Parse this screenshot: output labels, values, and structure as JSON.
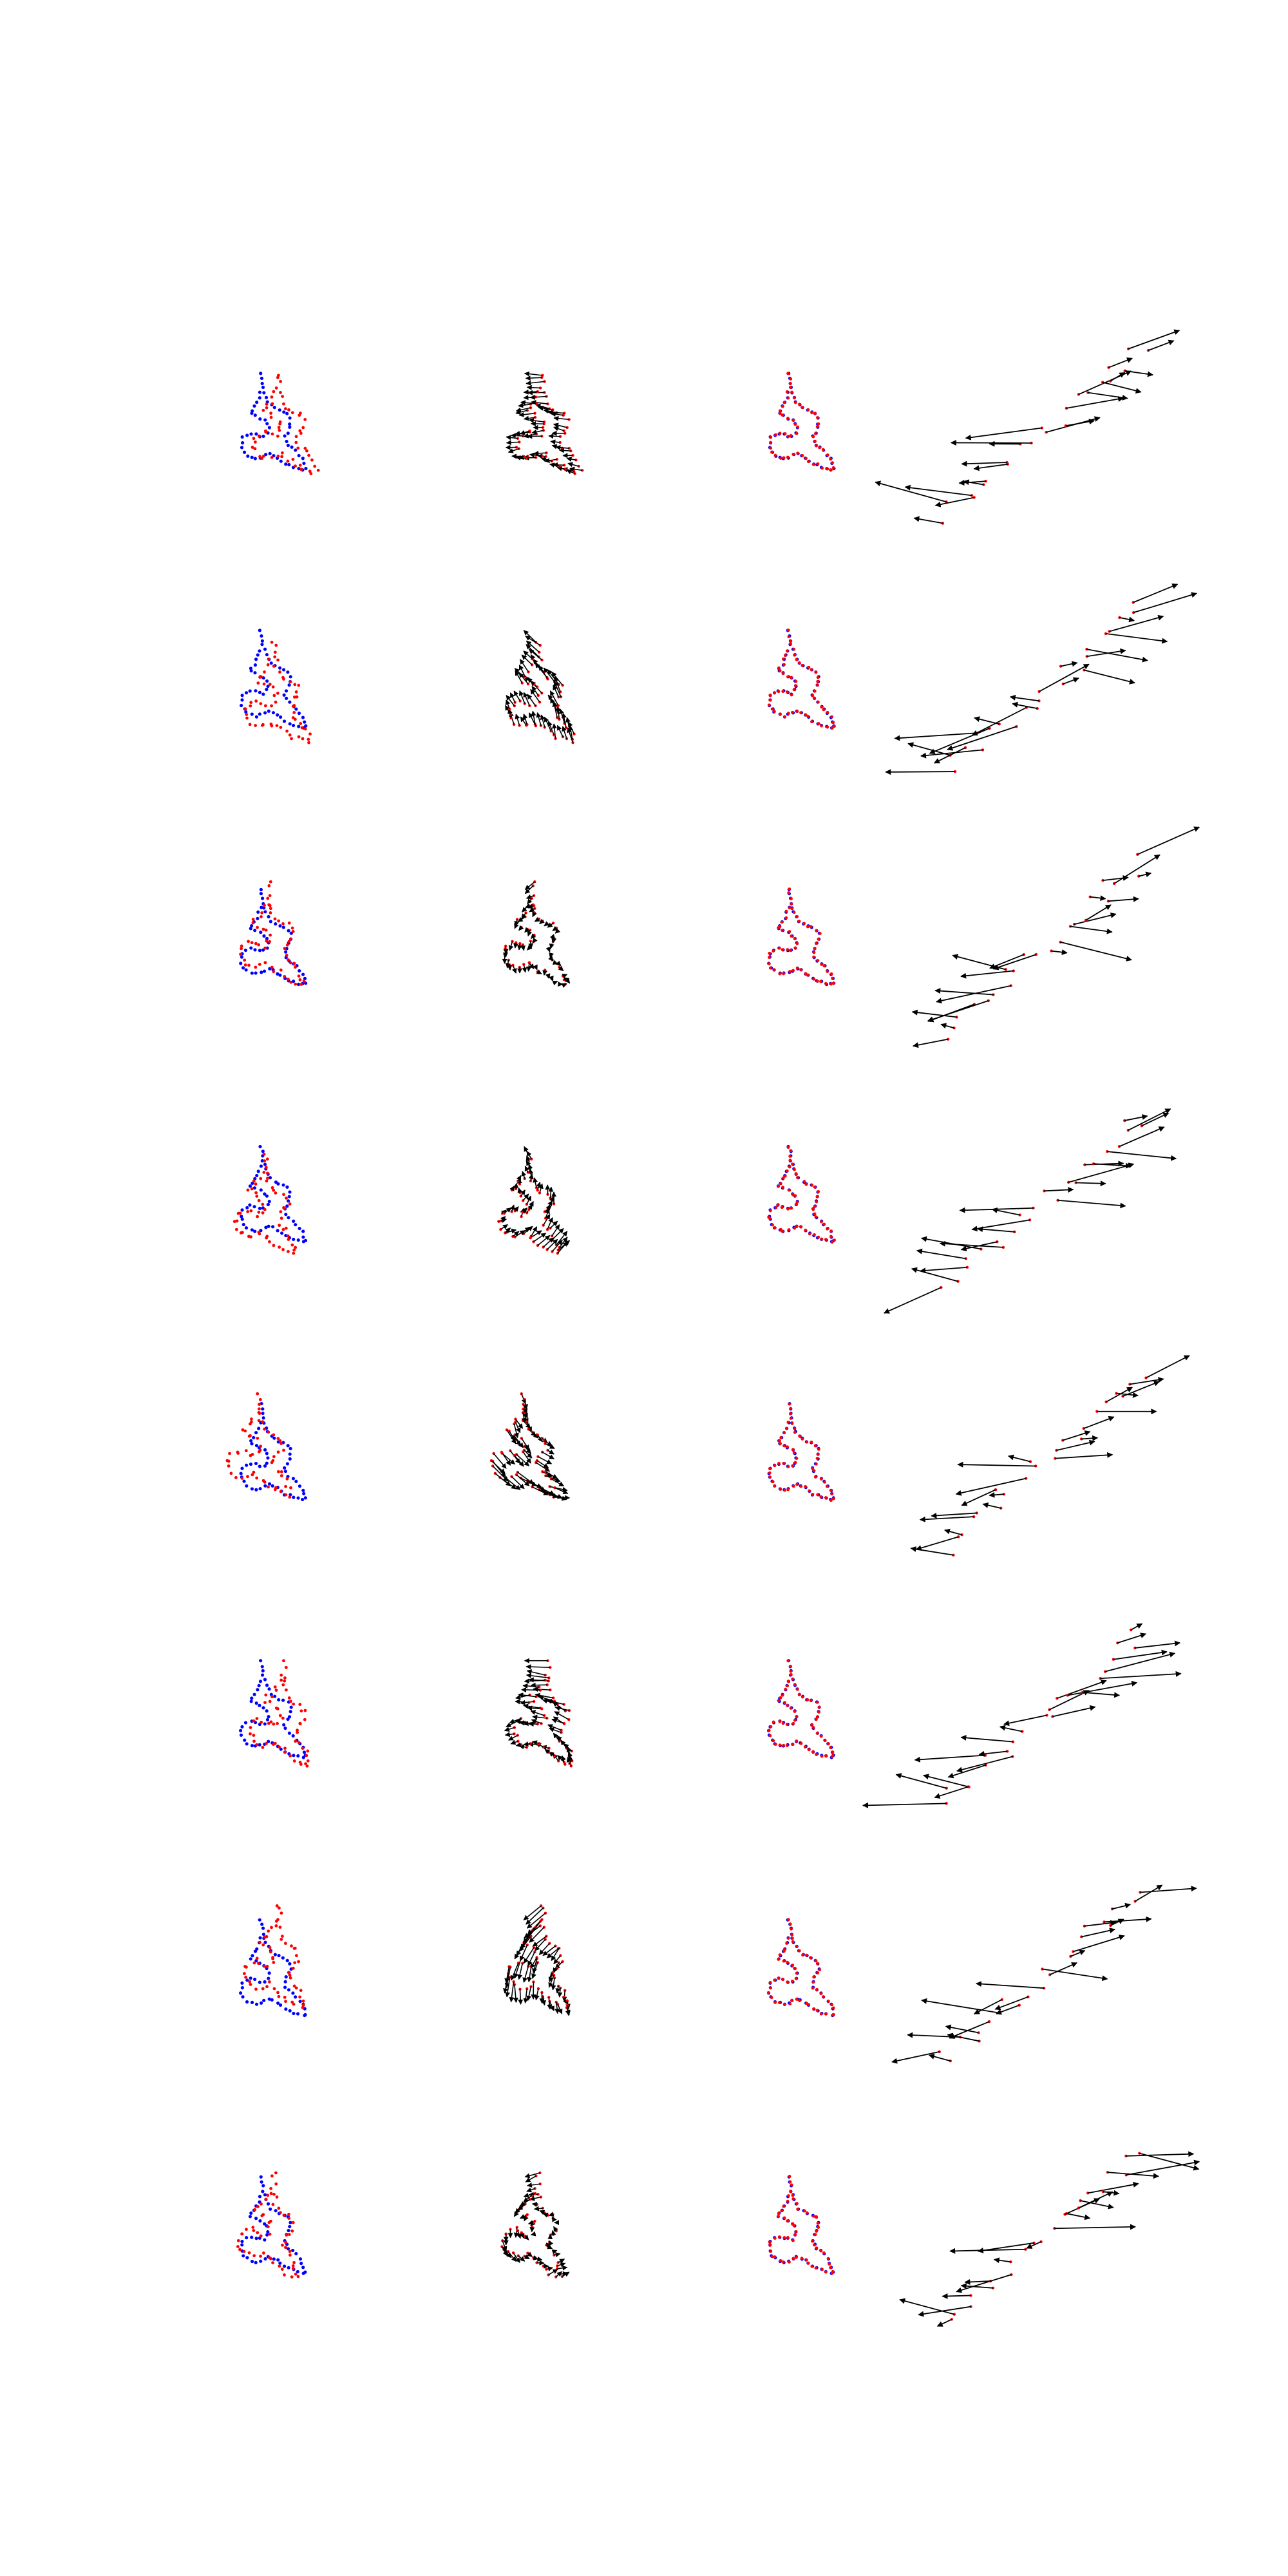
{
  "figure": {
    "rows": 8,
    "columns": [
      "source-vs-target-points",
      "correspondence-arrows",
      "aligned-points",
      "displacement-zoom"
    ]
  },
  "colors": {
    "source": "#ff0000",
    "target": "#0000ff",
    "arrow": "#000000",
    "background": "#ffffff"
  }
}
